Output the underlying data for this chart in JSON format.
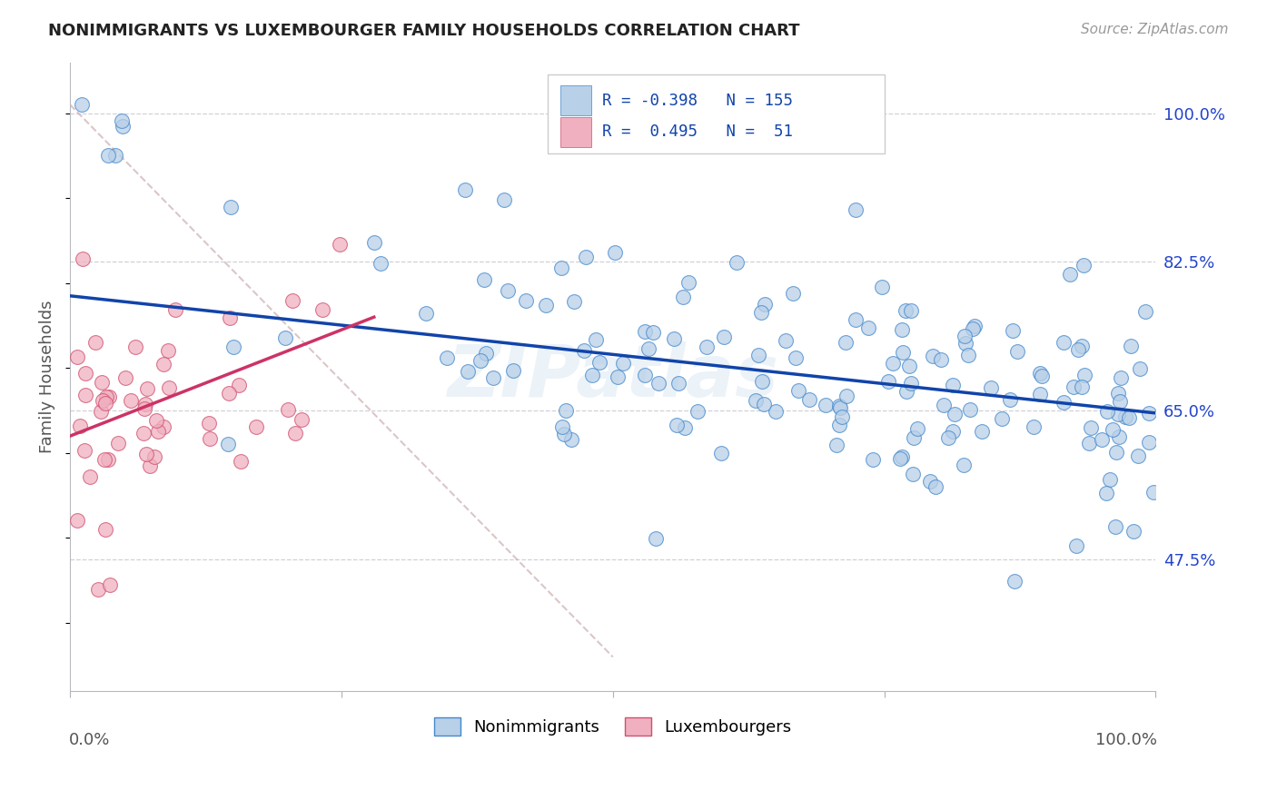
{
  "title": "NONIMMIGRANTS VS LUXEMBOURGER FAMILY HOUSEHOLDS CORRELATION CHART",
  "source": "Source: ZipAtlas.com",
  "ylabel": "Family Households",
  "legend_nonimm": "Nonimmigrants",
  "legend_luxem": "Luxembourgers",
  "r_nonimm": -0.398,
  "n_nonimm": 155,
  "r_luxem": 0.495,
  "n_luxem": 51,
  "color_nonimm_fill": "#b8d0e8",
  "color_nonimm_edge": "#4488cc",
  "color_luxem_fill": "#f0b0c0",
  "color_luxem_edge": "#d05070",
  "color_nonimm_line": "#1144aa",
  "color_luxem_line": "#cc3366",
  "color_diag": "#c8a8a8",
  "color_grid": "#d0d0d8",
  "background": "#ffffff",
  "ytick_labels": [
    "100.0%",
    "82.5%",
    "65.0%",
    "47.5%"
  ],
  "ytick_values": [
    1.0,
    0.825,
    0.65,
    0.475
  ],
  "ymin": 0.32,
  "ymax": 1.06,
  "xmin": 0.0,
  "xmax": 1.0
}
